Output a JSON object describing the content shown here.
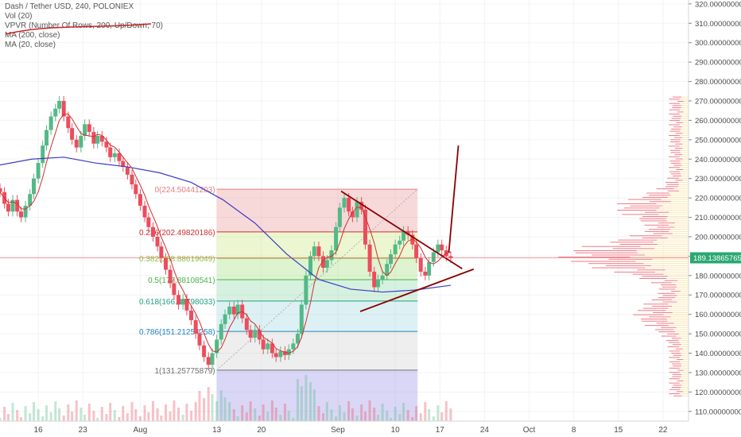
{
  "legend": {
    "symbol_line": "Dash / Tether USD, 240, POLONIEX",
    "vol": "Vol (20)",
    "vpvr": "VPVR (Number Of Rows, 200, Up/Down, 70)",
    "ma200": "MA (200, close)",
    "ma20": "MA (20, close)"
  },
  "colors": {
    "bull": "#53b987",
    "bear": "#eb4d5c",
    "ma200": "#3b3bc4",
    "ma20": "#d03030",
    "fib_0": "#e08080",
    "fib_236": "#c83232",
    "fib_382": "#8cc43c",
    "fib_5": "#46b446",
    "fib_618": "#22a080",
    "fib_786": "#2080c0",
    "fib_1": "#707070",
    "triangle": "#8b0000",
    "price_tag": "#2aa872"
  },
  "chart_data": {
    "type": "candlestick",
    "symbol": "Dash / Tether USD",
    "timeframe": "240",
    "exchange": "POLONIEX",
    "y_ticks": [
      "110.00000000",
      "120.00000000",
      "130.00000000",
      "140.00000000",
      "150.00000000",
      "160.00000000",
      "170.00000000",
      "180.00000000",
      "190.00000000",
      "200.00000000",
      "210.00000000",
      "220.00000000",
      "230.00000000",
      "240.00000000",
      "250.00000000",
      "260.00000000",
      "270.00000000",
      "280.00000000",
      "290.00000000",
      "300.00000000",
      "310.00000000",
      "320.00000000"
    ],
    "y_tick_values": [
      110,
      120,
      130,
      140,
      150,
      160,
      170,
      180,
      190,
      200,
      210,
      220,
      230,
      240,
      250,
      260,
      270,
      280,
      290,
      300,
      310,
      320
    ],
    "ylim": [
      105,
      322
    ],
    "x_ticks": [
      "16",
      "23",
      "Aug",
      "13",
      "20",
      "Sep",
      "10",
      "17",
      "24",
      "Oct",
      "8",
      "15",
      "22"
    ],
    "x_tick_days": [
      16,
      23,
      32,
      44,
      51,
      63,
      72,
      79,
      86,
      93,
      100,
      107,
      114
    ],
    "xlim": [
      10,
      118
    ],
    "last_price": "189.13865765",
    "last_price_value": 189.14,
    "fib_levels": [
      {
        "label": "0(224.50441203)",
        "value": 224.50441203,
        "ratio": "0"
      },
      {
        "label": "0.236(202.49820186)",
        "value": 202.49820186,
        "ratio": "0.236"
      },
      {
        "label": "0.382(188.88619049)",
        "value": 188.88619049,
        "ratio": "0.382"
      },
      {
        "label": "0.5(177.88108541)",
        "value": 177.88108541,
        "ratio": "0.5"
      },
      {
        "label": "0.618(166.87798033)",
        "value": 166.87798033,
        "ratio": "0.618"
      },
      {
        "label": "0.786(151.21254258)",
        "value": 151.21254258,
        "ratio": "0.786"
      },
      {
        "label": "1(131.25775879)",
        "value": 131.25775879,
        "ratio": "1"
      }
    ],
    "fib_range_days": [
      44,
      75.5
    ],
    "closes": [
      {
        "d": 10.0,
        "c": 223
      },
      {
        "d": 10.7,
        "c": 217
      },
      {
        "d": 11.3,
        "c": 213
      },
      {
        "d": 12.0,
        "c": 219
      },
      {
        "d": 12.7,
        "c": 213
      },
      {
        "d": 13.3,
        "c": 210
      },
      {
        "d": 14.0,
        "c": 216
      },
      {
        "d": 14.7,
        "c": 222
      },
      {
        "d": 15.3,
        "c": 230
      },
      {
        "d": 16.0,
        "c": 238
      },
      {
        "d": 16.7,
        "c": 247
      },
      {
        "d": 17.3,
        "c": 255
      },
      {
        "d": 18.0,
        "c": 262
      },
      {
        "d": 18.7,
        "c": 266
      },
      {
        "d": 19.3,
        "c": 270
      },
      {
        "d": 20.0,
        "c": 262
      },
      {
        "d": 20.7,
        "c": 256
      },
      {
        "d": 21.3,
        "c": 250
      },
      {
        "d": 22.0,
        "c": 246
      },
      {
        "d": 22.7,
        "c": 252
      },
      {
        "d": 23.3,
        "c": 258
      },
      {
        "d": 24.0,
        "c": 254
      },
      {
        "d": 24.7,
        "c": 248
      },
      {
        "d": 25.3,
        "c": 252
      },
      {
        "d": 26.0,
        "c": 249
      },
      {
        "d": 26.7,
        "c": 246
      },
      {
        "d": 27.3,
        "c": 241
      },
      {
        "d": 28.0,
        "c": 243
      },
      {
        "d": 28.7,
        "c": 239
      },
      {
        "d": 29.3,
        "c": 236
      },
      {
        "d": 30.0,
        "c": 232
      },
      {
        "d": 30.7,
        "c": 227
      },
      {
        "d": 31.3,
        "c": 222
      },
      {
        "d": 32.0,
        "c": 216
      },
      {
        "d": 32.7,
        "c": 210
      },
      {
        "d": 33.3,
        "c": 205
      },
      {
        "d": 34.0,
        "c": 200
      },
      {
        "d": 34.7,
        "c": 195
      },
      {
        "d": 35.3,
        "c": 189
      },
      {
        "d": 36.0,
        "c": 183
      },
      {
        "d": 36.7,
        "c": 176
      },
      {
        "d": 37.3,
        "c": 170
      },
      {
        "d": 38.0,
        "c": 165
      },
      {
        "d": 38.7,
        "c": 168
      },
      {
        "d": 39.3,
        "c": 162
      },
      {
        "d": 40.0,
        "c": 157
      },
      {
        "d": 40.7,
        "c": 150
      },
      {
        "d": 41.3,
        "c": 144
      },
      {
        "d": 42.0,
        "c": 138
      },
      {
        "d": 42.7,
        "c": 134
      },
      {
        "d": 43.3,
        "c": 140
      },
      {
        "d": 44.0,
        "c": 147
      },
      {
        "d": 44.7,
        "c": 155
      },
      {
        "d": 45.3,
        "c": 160
      },
      {
        "d": 46.0,
        "c": 164
      },
      {
        "d": 46.7,
        "c": 160
      },
      {
        "d": 47.3,
        "c": 165
      },
      {
        "d": 48.0,
        "c": 158
      },
      {
        "d": 48.7,
        "c": 152
      },
      {
        "d": 49.3,
        "c": 148
      },
      {
        "d": 50.0,
        "c": 152
      },
      {
        "d": 50.7,
        "c": 147
      },
      {
        "d": 51.3,
        "c": 142
      },
      {
        "d": 52.0,
        "c": 145
      },
      {
        "d": 52.7,
        "c": 140
      },
      {
        "d": 53.3,
        "c": 138
      },
      {
        "d": 54.0,
        "c": 141
      },
      {
        "d": 54.7,
        "c": 139
      },
      {
        "d": 55.3,
        "c": 142
      },
      {
        "d": 56.0,
        "c": 145
      },
      {
        "d": 56.7,
        "c": 150
      },
      {
        "d": 57.3,
        "c": 165
      },
      {
        "d": 58.0,
        "c": 180
      },
      {
        "d": 58.7,
        "c": 190
      },
      {
        "d": 59.3,
        "c": 195
      },
      {
        "d": 60.0,
        "c": 190
      },
      {
        "d": 60.7,
        "c": 184
      },
      {
        "d": 61.3,
        "c": 188
      },
      {
        "d": 62.0,
        "c": 193
      },
      {
        "d": 62.7,
        "c": 205
      },
      {
        "d": 63.3,
        "c": 215
      },
      {
        "d": 64.0,
        "c": 220
      },
      {
        "d": 64.7,
        "c": 213
      },
      {
        "d": 65.3,
        "c": 210
      },
      {
        "d": 66.0,
        "c": 218
      },
      {
        "d": 66.7,
        "c": 214
      },
      {
        "d": 67.3,
        "c": 196
      },
      {
        "d": 68.0,
        "c": 182
      },
      {
        "d": 68.7,
        "c": 174
      },
      {
        "d": 69.3,
        "c": 178
      },
      {
        "d": 70.0,
        "c": 180
      },
      {
        "d": 70.7,
        "c": 186
      },
      {
        "d": 71.3,
        "c": 191
      },
      {
        "d": 72.0,
        "c": 196
      },
      {
        "d": 72.7,
        "c": 198
      },
      {
        "d": 73.3,
        "c": 203
      },
      {
        "d": 74.0,
        "c": 201
      },
      {
        "d": 74.7,
        "c": 196
      },
      {
        "d": 75.3,
        "c": 189
      },
      {
        "d": 76.0,
        "c": 182
      },
      {
        "d": 76.7,
        "c": 180
      },
      {
        "d": 77.3,
        "c": 187
      },
      {
        "d": 78.0,
        "c": 192
      },
      {
        "d": 78.7,
        "c": 196
      },
      {
        "d": 79.3,
        "c": 193
      },
      {
        "d": 80.0,
        "c": 190
      },
      {
        "d": 80.7,
        "c": 189
      }
    ],
    "ma200": [
      {
        "d": 10,
        "v": 237
      },
      {
        "d": 15,
        "v": 240
      },
      {
        "d": 20,
        "v": 241
      },
      {
        "d": 25,
        "v": 238
      },
      {
        "d": 30,
        "v": 236
      },
      {
        "d": 35,
        "v": 233
      },
      {
        "d": 40,
        "v": 228
      },
      {
        "d": 45,
        "v": 219
      },
      {
        "d": 50,
        "v": 207
      },
      {
        "d": 55,
        "v": 191
      },
      {
        "d": 60,
        "v": 178
      },
      {
        "d": 65,
        "v": 173
      },
      {
        "d": 70,
        "v": 171.5
      },
      {
        "d": 75,
        "v": 172.5
      },
      {
        "d": 80.7,
        "v": 175
      }
    ],
    "triangle_lines": [
      {
        "d1": 63.5,
        "v1": 223.5,
        "d2": 82.5,
        "v2": 183.5
      },
      {
        "d1": 66.5,
        "v1": 161.5,
        "d2": 84.3,
        "v2": 183.3
      },
      {
        "d1": 80.4,
        "v1": 192,
        "d2": 81.9,
        "v2": 247
      }
    ]
  }
}
